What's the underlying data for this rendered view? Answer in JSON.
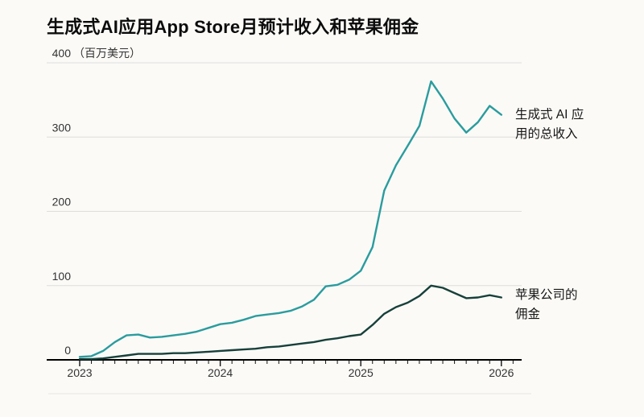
{
  "page": {
    "background": "#fbfaf7",
    "text_color": "#151515",
    "grid_color": "#dddddc",
    "axis_color": "#111111",
    "tick_label_color": "#333333",
    "divider_color": "#e7e6e2"
  },
  "header": {
    "title": "生成式AI应用App Store月预计收入和苹果佣金"
  },
  "chart_data": {
    "type": "line",
    "title": "生成式AI应用App Store月预计收入和苹果佣金",
    "unit_label": "（百万美元）",
    "ylabel": "",
    "xlabel": "",
    "ylim": [
      0,
      400
    ],
    "yticks": [
      0,
      100,
      200,
      300,
      400
    ],
    "grid": "horizontal",
    "legend_position": "right-annotations",
    "x": [
      "2023-01",
      "2023-02",
      "2023-03",
      "2023-04",
      "2023-05",
      "2023-06",
      "2023-07",
      "2023-08",
      "2023-09",
      "2023-10",
      "2023-11",
      "2023-12",
      "2024-01",
      "2024-02",
      "2024-03",
      "2024-04",
      "2024-05",
      "2024-06",
      "2024-07",
      "2024-08",
      "2024-09",
      "2024-10",
      "2024-11",
      "2024-12",
      "2025-01",
      "2025-02",
      "2025-03",
      "2025-04",
      "2025-05",
      "2025-06",
      "2025-07",
      "2025-08",
      "2025-09",
      "2025-10",
      "2025-11",
      "2025-12",
      "2026-01"
    ],
    "xticks_years": [
      "2023",
      "2024",
      "2025",
      "2026"
    ],
    "series": [
      {
        "name": "生成式AI应用的总收入",
        "color": "#2a9c9e",
        "values": [
          4,
          5,
          12,
          24,
          33,
          34,
          30,
          31,
          33,
          35,
          38,
          43,
          48,
          50,
          54,
          59,
          61,
          63,
          66,
          72,
          81,
          99,
          101,
          108,
          120,
          152,
          228,
          262,
          288,
          315,
          375,
          352,
          325,
          306,
          320,
          342,
          330
        ]
      },
      {
        "name": "苹果公司的佣金",
        "color": "#17403a",
        "values": [
          1,
          1,
          2,
          4,
          6,
          8,
          8,
          8,
          9,
          9,
          10,
          11,
          12,
          13,
          14,
          15,
          17,
          18,
          20,
          22,
          24,
          27,
          29,
          32,
          34,
          47,
          62,
          71,
          77,
          86,
          100,
          97,
          90,
          83,
          84,
          87,
          84
        ]
      }
    ],
    "annotations": [
      {
        "series": "生成式AI应用的总收入",
        "lines": [
          "生成式 AI 应",
          "用的总收入"
        ]
      },
      {
        "series": "苹果公司的佣金",
        "lines": [
          "苹果公司的",
          "佣金"
        ]
      }
    ]
  }
}
